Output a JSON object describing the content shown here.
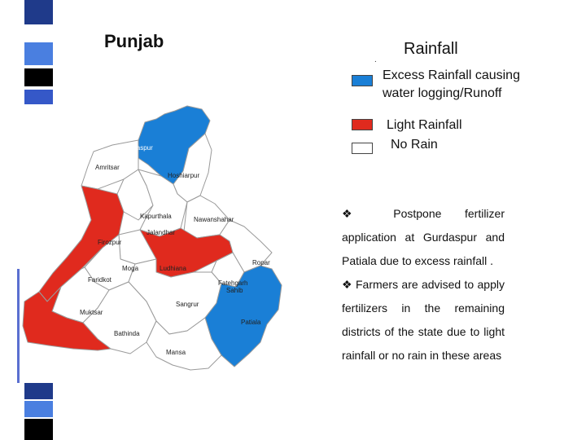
{
  "title": "Punjab",
  "legend": {
    "heading": "Rainfall",
    "dot": ".",
    "items": [
      {
        "label_line1": "Excess Rainfall causing",
        "label_line2": "water logging/Runoff",
        "color": "#1a7fd6"
      },
      {
        "label_line1": "Light Rainfall",
        "color": "#e02a1e"
      },
      {
        "label_line1": "No Rain",
        "color": "#ffffff"
      }
    ]
  },
  "advice": {
    "bullet_icon": "diamond-bullet-icon",
    "p1_a": "Postpone fertilizer",
    "p1_b": "application at Gurdaspur and Patiala due to excess rainfall .",
    "p2": "Farmers are advised to apply fertilizers in the remaining districts of the state due to light rainfall or no rain in these areas"
  },
  "districts": {
    "gurdaspur": "Gurdaspur",
    "amritsar": "Amritsar",
    "hoshiarpur": "Hoshiarpur",
    "kapurthala": "Kapurthala",
    "nawanshahar": "Nawanshahar",
    "jalandhar": "Jalandhar",
    "firozpur": "Firozpur",
    "moga": "Moga",
    "ludhiana": "Ludhiana",
    "ropar": "Ropar",
    "faridkot": "Faridkot",
    "fatehgarh_line1": "Fatehgarh",
    "fatehgarh_line2": "Sahib",
    "muktsar": "Muktsar",
    "sangrur": "Sangrur",
    "patiala": "Patiala",
    "bathinda": "Bathinda",
    "mansa": "Mansa"
  },
  "colors": {
    "excess": "#1a7fd6",
    "light": "#e02a1e",
    "none": "#ffffff",
    "border": "#9a9a9a"
  }
}
